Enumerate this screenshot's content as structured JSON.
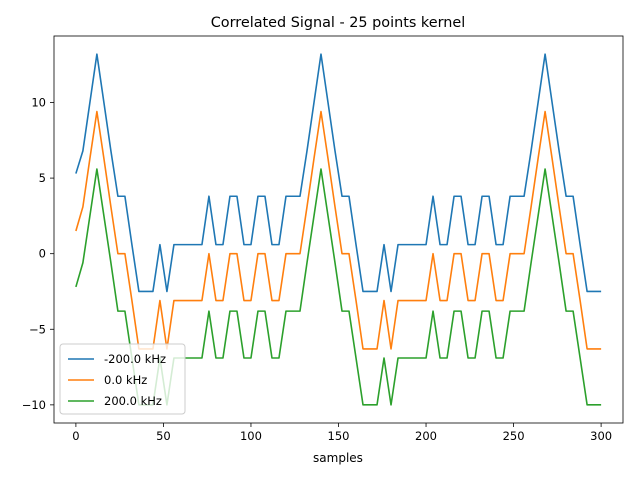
{
  "chart_data": {
    "type": "line",
    "title": "Correlated Signal - 25 points kernel",
    "xlabel": "samples",
    "ylabel": "",
    "xlim": [
      -12.5,
      312.5
    ],
    "ylim": [
      -11.2,
      14.4
    ],
    "xticks": [
      0,
      50,
      100,
      150,
      200,
      250,
      300
    ],
    "yticks": [
      -10,
      -5,
      0,
      5,
      10
    ],
    "grid": false,
    "legend_position": "lower-left",
    "x": [
      0,
      4,
      8,
      12,
      16,
      20,
      24,
      28,
      32,
      36,
      40,
      44,
      48,
      52,
      56,
      60,
      64,
      68,
      72,
      76,
      80,
      84,
      88,
      92,
      96,
      100,
      104,
      108,
      112,
      116,
      120,
      124,
      128,
      132,
      136,
      140,
      144,
      148,
      152,
      156,
      160,
      164,
      168,
      172,
      176,
      180,
      184,
      188,
      192,
      196,
      200,
      204,
      208,
      212,
      216,
      220,
      224,
      228,
      232,
      236,
      240,
      244,
      248,
      252,
      256,
      260,
      264,
      268,
      272,
      276,
      280,
      284,
      288,
      292,
      296,
      300
    ],
    "series": [
      {
        "name": "-200.0 kHz",
        "color": "#1f77b4",
        "values": [
          5.3,
          6.8,
          10.0,
          13.2,
          10.0,
          6.8,
          3.8,
          3.8,
          0.6,
          -2.5,
          -2.5,
          -2.5,
          0.6,
          -2.5,
          0.6,
          0.6,
          0.6,
          0.6,
          0.6,
          3.8,
          0.6,
          0.6,
          3.8,
          3.8,
          0.6,
          0.6,
          3.8,
          3.8,
          0.6,
          0.6,
          3.8,
          3.8,
          3.8,
          6.8,
          10.0,
          13.2,
          10.0,
          6.8,
          3.8,
          3.8,
          0.6,
          -2.5,
          -2.5,
          -2.5,
          0.6,
          -2.5,
          0.6,
          0.6,
          0.6,
          0.6,
          0.6,
          3.8,
          0.6,
          0.6,
          3.8,
          3.8,
          0.6,
          0.6,
          3.8,
          3.8,
          0.6,
          0.6,
          3.8,
          3.8,
          3.8,
          6.8,
          10.0,
          13.2,
          10.0,
          6.8,
          3.8,
          3.8,
          0.6,
          -2.5,
          -2.5,
          -2.5
        ]
      },
      {
        "name": "0.0 kHz",
        "color": "#ff7f0e",
        "values": [
          1.5,
          3.1,
          6.3,
          9.4,
          6.3,
          3.1,
          0.0,
          0.0,
          -3.1,
          -6.3,
          -6.3,
          -6.3,
          -3.1,
          -6.3,
          -3.1,
          -3.1,
          -3.1,
          -3.1,
          -3.1,
          0.0,
          -3.1,
          -3.1,
          0.0,
          0.0,
          -3.1,
          -3.1,
          0.0,
          0.0,
          -3.1,
          -3.1,
          0.0,
          0.0,
          0.0,
          3.1,
          6.3,
          9.4,
          6.3,
          3.1,
          0.0,
          0.0,
          -3.1,
          -6.3,
          -6.3,
          -6.3,
          -3.1,
          -6.3,
          -3.1,
          -3.1,
          -3.1,
          -3.1,
          -3.1,
          0.0,
          -3.1,
          -3.1,
          0.0,
          0.0,
          -3.1,
          -3.1,
          0.0,
          0.0,
          -3.1,
          -3.1,
          0.0,
          0.0,
          0.0,
          3.1,
          6.3,
          9.4,
          6.3,
          3.1,
          0.0,
          0.0,
          -3.1,
          -6.3,
          -6.3,
          -6.3
        ]
      },
      {
        "name": "200.0 kHz",
        "color": "#2ca02c",
        "values": [
          -2.2,
          -0.6,
          2.5,
          5.6,
          2.5,
          -0.6,
          -3.8,
          -3.8,
          -6.9,
          -10.0,
          -10.0,
          -10.0,
          -6.9,
          -10.0,
          -6.9,
          -6.9,
          -6.9,
          -6.9,
          -6.9,
          -3.8,
          -6.9,
          -6.9,
          -3.8,
          -3.8,
          -6.9,
          -6.9,
          -3.8,
          -3.8,
          -6.9,
          -6.9,
          -3.8,
          -3.8,
          -3.8,
          -0.6,
          2.5,
          5.6,
          2.5,
          -0.6,
          -3.8,
          -3.8,
          -6.9,
          -10.0,
          -10.0,
          -10.0,
          -6.9,
          -10.0,
          -6.9,
          -6.9,
          -6.9,
          -6.9,
          -6.9,
          -3.8,
          -6.9,
          -6.9,
          -3.8,
          -3.8,
          -6.9,
          -6.9,
          -3.8,
          -3.8,
          -6.9,
          -6.9,
          -3.8,
          -3.8,
          -3.8,
          -0.6,
          2.5,
          5.6,
          2.5,
          -0.6,
          -3.8,
          -3.8,
          -6.9,
          -10.0,
          -10.0,
          -10.0
        ]
      }
    ]
  }
}
